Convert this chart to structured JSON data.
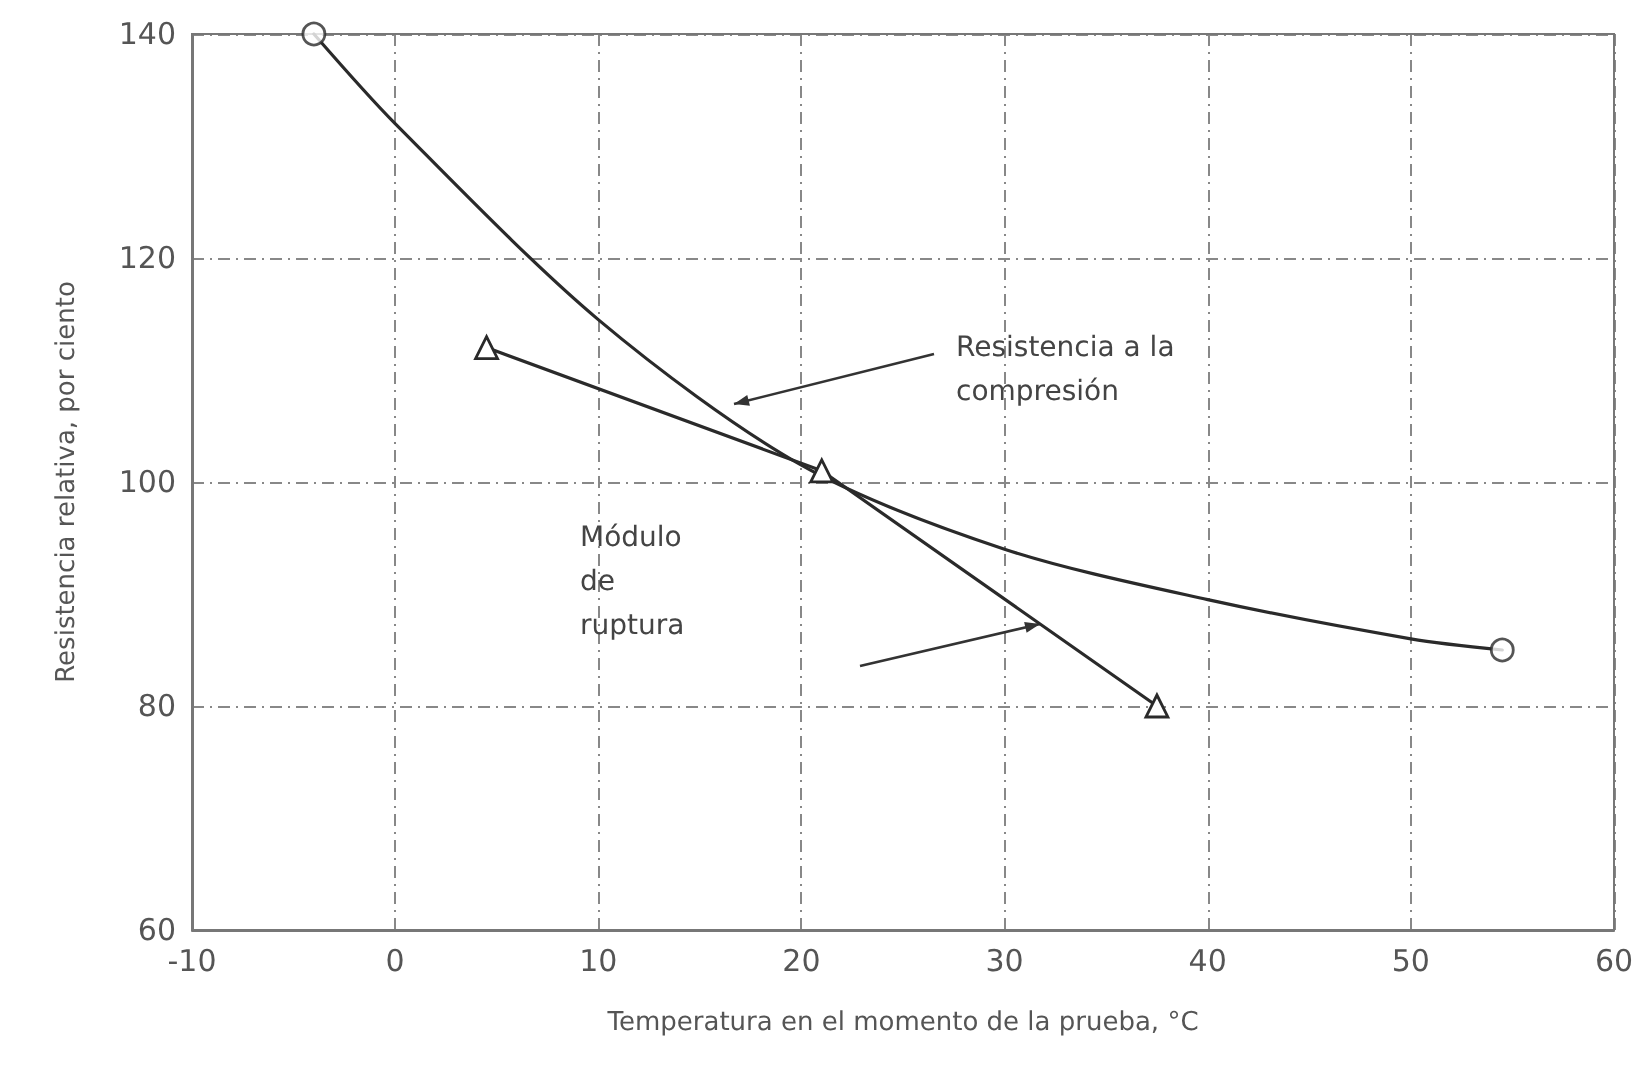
{
  "chart_data": {
    "type": "line",
    "xlabel": "Temperatura en el momento de la prueba, °C",
    "ylabel": "Resistencia relativa, por ciento",
    "xlim": [
      -10,
      60
    ],
    "xticks": [
      -10,
      0,
      10,
      20,
      30,
      40,
      50,
      60
    ],
    "ylim": [
      60,
      140
    ],
    "yticks": [
      60,
      80,
      100,
      120,
      140
    ],
    "grid": true,
    "series": [
      {
        "color": "#2a2a2a",
        "marker": "none",
        "x": [
          -4,
          0,
          10,
          20,
          30,
          40,
          50,
          54.5
        ],
        "values": [
          140,
          132,
          114.5,
          101.5,
          94,
          89.5,
          86,
          85
        ]
      },
      {
        "type": "scatter",
        "color": "#2a2a2a",
        "marker": "circle",
        "x": [
          -4,
          54.5
        ],
        "values": [
          140,
          85
        ]
      },
      {
        "color": "#2a2a2a",
        "marker": "triangle",
        "x": [
          4.5,
          21,
          37.5
        ],
        "values": [
          112,
          101,
          80
        ]
      }
    ],
    "annotations": [
      "Resistencia a la\ncompresión",
      "Módulo\nde\nruptura"
    ]
  }
}
